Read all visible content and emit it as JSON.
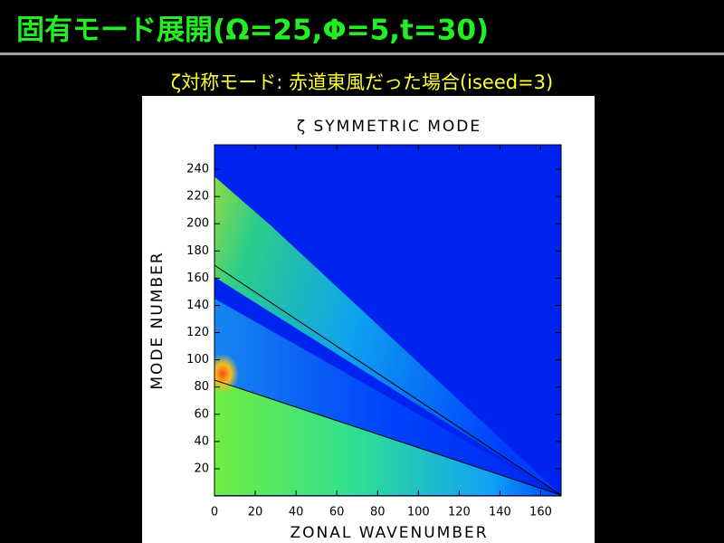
{
  "slide": {
    "title": "固有モード展開(Ω=25,Φ=5,t=30)",
    "subtitle": "ζ対称モード: 赤道東風だった場合(iseed=3)"
  },
  "chart_data": {
    "type": "heatmap",
    "title": "ζ SYMMETRIC MODE",
    "x_label": "ZONAL WAVENUMBER",
    "y_label": "MODE NUMBER",
    "xlim": [
      0,
      170
    ],
    "ylim": [
      0,
      258
    ],
    "xticks": [
      0,
      20,
      40,
      60,
      80,
      100,
      120,
      140,
      160
    ],
    "yticks": [
      20,
      40,
      60,
      80,
      100,
      120,
      140,
      160,
      180,
      200,
      220,
      240
    ]
  }
}
